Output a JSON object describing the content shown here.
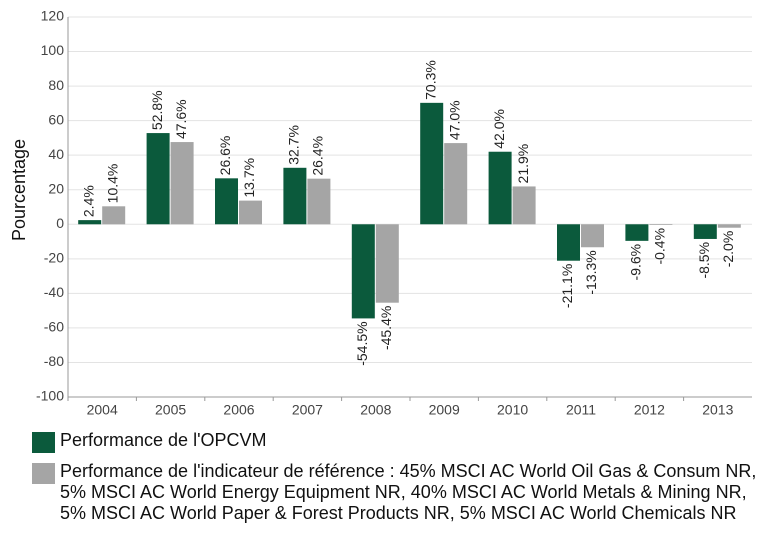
{
  "chart_data": {
    "type": "bar",
    "y_label": "Pourcentage",
    "categories": [
      "2004",
      "2005",
      "2006",
      "2007",
      "2008",
      "2009",
      "2010",
      "2011",
      "2012",
      "2013"
    ],
    "series": [
      {
        "name": "Performance de l'OPCVM",
        "color": "#0b5a3c",
        "values": [
          2.4,
          52.8,
          26.6,
          32.7,
          -54.5,
          70.3,
          42.0,
          -21.1,
          -9.6,
          -8.5
        ],
        "value_labels": [
          "2.4%",
          "52.8%",
          "26.6%",
          "32.7%",
          "-54.5%",
          "70.3%",
          "42.0%",
          "-21.1%",
          "-9.6%",
          "-8.5%"
        ]
      },
      {
        "name": "Performance de l'indicateur de référence : 45% MSCI AC World Oil Gas & Consum NR, 5% MSCI AC World Energy Equipment NR, 40% MSCI AC World Metals & Mining NR, 5% MSCI AC World Paper & Forest Products NR, 5% MSCI AC World Chemicals NR",
        "color": "#a5a5a5",
        "values": [
          10.4,
          47.6,
          13.7,
          26.4,
          -45.4,
          47.0,
          21.9,
          -13.3,
          -0.4,
          -2.0
        ],
        "value_labels": [
          "10.4%",
          "47.6%",
          "13.7%",
          "26.4%",
          "-45.4%",
          "47.0%",
          "21.9%",
          "-13.3%",
          "-0.4%",
          "-2.0%"
        ]
      }
    ],
    "ylim": [
      -100,
      120
    ],
    "yticks": [
      -100,
      -80,
      -60,
      -40,
      -20,
      0,
      20,
      40,
      60,
      80,
      100,
      120
    ],
    "grid": true
  }
}
